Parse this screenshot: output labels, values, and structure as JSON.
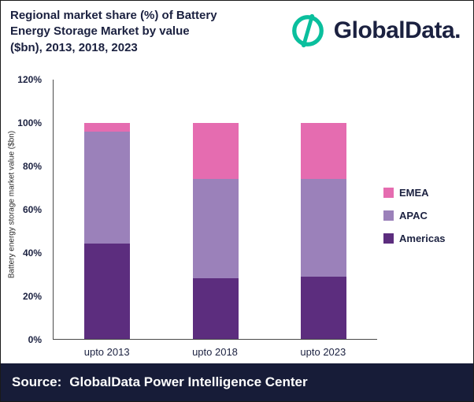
{
  "header": {
    "title": "Regional market share (%) of Battery\nEnergy Storage Market by value\n($bn), 2013, 2018, 2023",
    "logo_text": "GlobalData."
  },
  "footer": {
    "source_label": "Source:",
    "source_text": "GlobalData Power Intelligence Center"
  },
  "colors": {
    "brand_teal": "#0abf9d",
    "navy": "#1b2140",
    "emea_pink": "#e56cb0",
    "apac_mauve": "#9b81ba",
    "americas_purple": "#5c2d7e"
  },
  "chart_data": {
    "type": "bar",
    "stacked": true,
    "title": "Regional market share (%) of Battery Energy Storage Market by value ($bn), 2013, 2018, 2023",
    "categories": [
      "upto 2013",
      "upto 2018",
      "upto 2023"
    ],
    "series": [
      {
        "name": "Americas",
        "color": "#5c2d7e",
        "values": [
          44,
          28,
          29
        ]
      },
      {
        "name": "APAC",
        "color": "#9b81ba",
        "values": [
          52,
          46,
          45
        ]
      },
      {
        "name": "EMEA",
        "color": "#e56cb0",
        "values": [
          4,
          26,
          26
        ]
      }
    ],
    "legend": [
      "EMEA",
      "APAC",
      "Americas"
    ],
    "legend_position": "right",
    "xlabel": "",
    "ylabel": "Battery energy storage market value ($bn)",
    "ylim": [
      0,
      120
    ],
    "yticks": [
      "0%",
      "20%",
      "40%",
      "60%",
      "80%",
      "100%",
      "120%"
    ],
    "grid": false
  }
}
